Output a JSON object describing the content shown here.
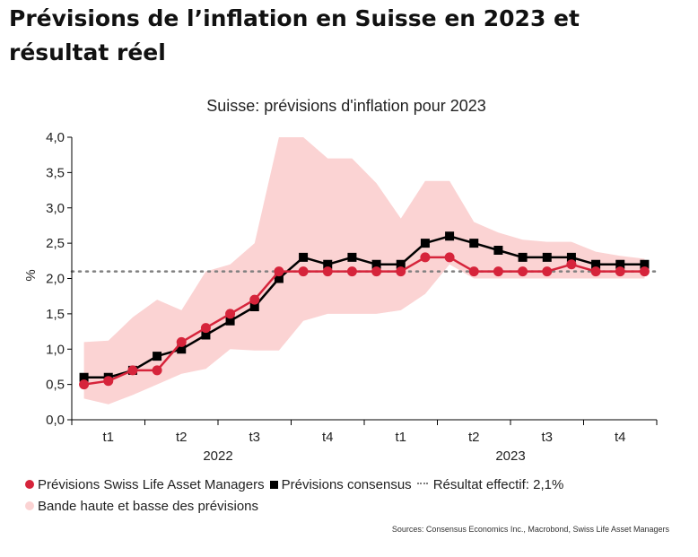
{
  "title": "Prévisions de l’inflation en Suisse en 2023 et résultat réel",
  "source": "Sources: Consensus Economics Inc., Macrobond, Swiss Life Asset Managers",
  "colors": {
    "swiss_life": "#d6243b",
    "consensus": "#000000",
    "actual": "#808080",
    "band": "#fbd3d3"
  },
  "chart_data": {
    "type": "line",
    "title": "Suisse: prévisions d'inflation pour 2023",
    "ylabel": "%",
    "ylim": [
      0,
      4
    ],
    "yticks": [
      "0,0",
      "0,5",
      "1,0",
      "1,5",
      "2,0",
      "2,5",
      "3,0",
      "3,5",
      "4,0"
    ],
    "quarter_labels": [
      "t1",
      "t2",
      "t3",
      "t4",
      "t1",
      "t2",
      "t3",
      "t4"
    ],
    "year_labels": [
      "2022",
      "2023"
    ],
    "x": [
      "2022-01",
      "2022-02",
      "2022-03",
      "2022-04",
      "2022-05",
      "2022-06",
      "2022-07",
      "2022-08",
      "2022-09",
      "2022-10",
      "2022-11",
      "2022-12",
      "2023-01",
      "2023-02",
      "2023-03",
      "2023-04",
      "2023-05",
      "2023-06",
      "2023-07",
      "2023-08",
      "2023-09",
      "2023-10",
      "2023-11",
      "2023-12"
    ],
    "series": [
      {
        "name": "Prévisions Swiss Life Asset Managers",
        "marker": "circle",
        "values": [
          0.5,
          0.55,
          0.7,
          0.7,
          1.1,
          1.3,
          1.5,
          1.7,
          2.1,
          2.1,
          2.1,
          2.1,
          2.1,
          2.1,
          2.3,
          2.3,
          2.1,
          2.1,
          2.1,
          2.1,
          2.2,
          2.1,
          2.1,
          2.1
        ]
      },
      {
        "name": "Prévisions consensus",
        "marker": "square",
        "values": [
          0.6,
          0.6,
          0.7,
          0.9,
          1.0,
          1.2,
          1.4,
          1.6,
          2.0,
          2.3,
          2.2,
          2.3,
          2.2,
          2.2,
          2.5,
          2.6,
          2.5,
          2.4,
          2.3,
          2.3,
          2.3,
          2.2,
          2.2,
          2.2
        ]
      }
    ],
    "reference_line": {
      "name": "Résultat effectif: 2,1%",
      "value": 2.1
    },
    "band": {
      "name": "Bande haute et basse des prévisions",
      "upper": [
        1.1,
        1.12,
        1.45,
        1.7,
        1.55,
        2.1,
        2.2,
        2.5,
        4.0,
        4.0,
        3.7,
        3.7,
        3.35,
        2.85,
        3.38,
        3.38,
        2.8,
        2.65,
        2.55,
        2.52,
        2.52,
        2.38,
        2.32,
        2.28
      ],
      "lower": [
        0.3,
        0.22,
        0.35,
        0.5,
        0.65,
        0.72,
        1.0,
        0.98,
        0.98,
        1.4,
        1.5,
        1.5,
        1.5,
        1.55,
        1.78,
        2.2,
        2.0,
        2.0,
        2.0,
        2.0,
        2.0,
        2.0,
        2.0,
        2.0
      ]
    },
    "legend": {
      "swiss_life": "Prévisions Swiss Life Asset Managers",
      "consensus": "Prévisions consensus",
      "actual": "Résultat effectif: 2,1%",
      "band": "Bande haute et basse des prévisions"
    },
    "legend_position": "bottom",
    "grid": false
  }
}
